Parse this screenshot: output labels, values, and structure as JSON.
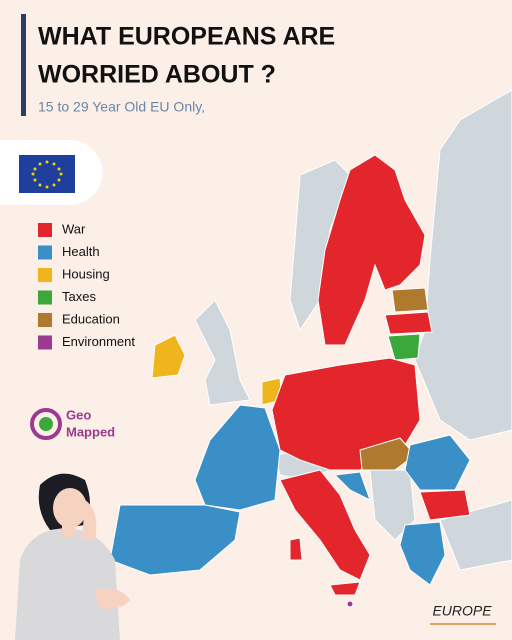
{
  "header": {
    "title": [
      "WHAT EUROPEANS ARE",
      "WORRIED ABOUT ?"
    ],
    "subtitle": "15 to 29 Year Old EU Only,"
  },
  "legend": [
    {
      "label": "War",
      "color": "#e3262c"
    },
    {
      "label": "Health",
      "color": "#3a8fc7"
    },
    {
      "label": "Housing",
      "color": "#f0b41c"
    },
    {
      "label": "Taxes",
      "color": "#3aa83a"
    },
    {
      "label": "Education",
      "color": "#b07a2e"
    },
    {
      "label": "Environment",
      "color": "#9b3a8e"
    }
  ],
  "logo": {
    "line1": "Geo",
    "line2": "Mapped"
  },
  "footer": "EUROPE"
}
